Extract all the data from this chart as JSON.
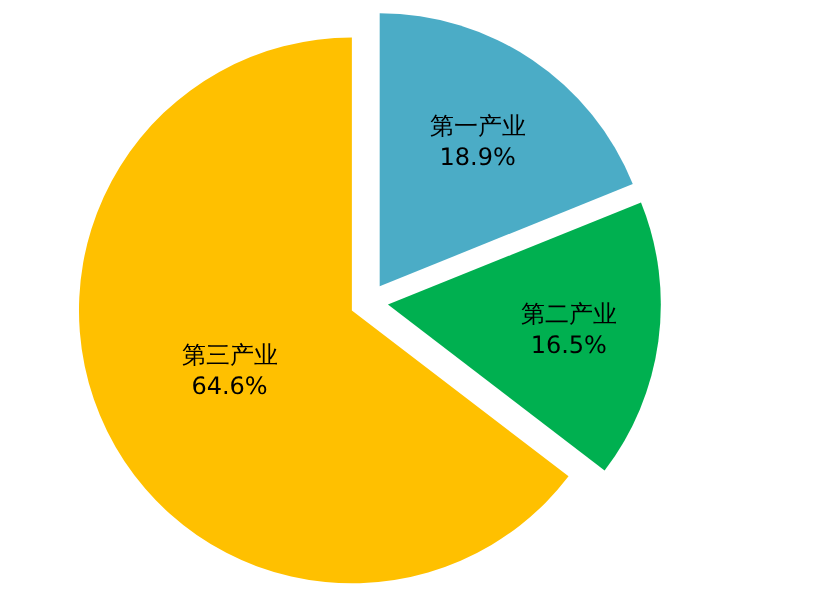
{
  "chart_data": {
    "type": "pie",
    "categories": [
      "第一产业",
      "第二产业",
      "第三产业"
    ],
    "values": [
      18.9,
      16.5,
      64.6
    ],
    "colors": [
      "#4bacc6",
      "#00b050",
      "#ffc000"
    ],
    "value_labels": [
      "18.9%",
      "16.5%",
      "64.6%"
    ],
    "legend": false
  }
}
